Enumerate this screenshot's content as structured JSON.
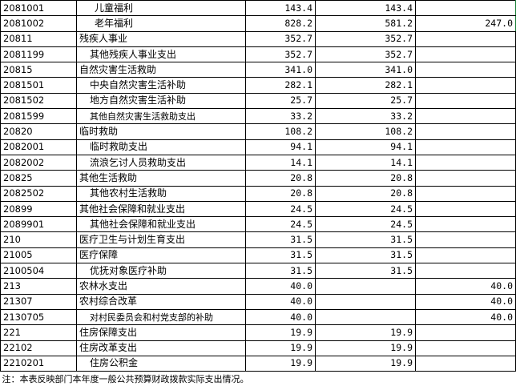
{
  "rows": [
    {
      "code": "2081001",
      "name": "儿童福利",
      "indent": 2,
      "v1": "143.4",
      "v2": "143.4",
      "v3": ""
    },
    {
      "code": "2081002",
      "name": "老年福利",
      "indent": 2,
      "v1": "828.2",
      "v2": "581.2",
      "v3": "247.0"
    },
    {
      "code": "20811",
      "name": "残疾人事业",
      "indent": 0,
      "v1": "352.7",
      "v2": "352.7",
      "v3": ""
    },
    {
      "code": "2081199",
      "name": "其他残疾人事业支出",
      "indent": 1,
      "v1": "352.7",
      "v2": "352.7",
      "v3": ""
    },
    {
      "code": "20815",
      "name": "自然灾害生活救助",
      "indent": 0,
      "v1": "341.0",
      "v2": "341.0",
      "v3": ""
    },
    {
      "code": "2081501",
      "name": "中央自然灾害生活补助",
      "indent": 1,
      "v1": "282.1",
      "v2": "282.1",
      "v3": ""
    },
    {
      "code": "2081502",
      "name": "地方自然灾害生活补助",
      "indent": 1,
      "v1": "25.7",
      "v2": "25.7",
      "v3": ""
    },
    {
      "code": "2081599",
      "name": "其他自然灾害生活救助支出",
      "indent": 1,
      "v1": "33.2",
      "v2": "33.2",
      "v3": ""
    },
    {
      "code": "20820",
      "name": "临时救助",
      "indent": 0,
      "v1": "108.2",
      "v2": "108.2",
      "v3": ""
    },
    {
      "code": "2082001",
      "name": "临时救助支出",
      "indent": 1,
      "v1": "94.1",
      "v2": "94.1",
      "v3": ""
    },
    {
      "code": "2082002",
      "name": "流浪乞讨人员救助支出",
      "indent": 1,
      "v1": "14.1",
      "v2": "14.1",
      "v3": ""
    },
    {
      "code": "20825",
      "name": "其他生活救助",
      "indent": 0,
      "v1": "20.8",
      "v2": "20.8",
      "v3": ""
    },
    {
      "code": "2082502",
      "name": "其他农村生活救助",
      "indent": 1,
      "v1": "20.8",
      "v2": "20.8",
      "v3": ""
    },
    {
      "code": "20899",
      "name": "其他社会保障和就业支出",
      "indent": 0,
      "v1": "24.5",
      "v2": "24.5",
      "v3": ""
    },
    {
      "code": "2089901",
      "name": "其他社会保障和就业支出",
      "indent": 1,
      "v1": "24.5",
      "v2": "24.5",
      "v3": ""
    },
    {
      "code": "210",
      "name": "医疗卫生与计划生育支出",
      "indent": 0,
      "v1": "31.5",
      "v2": "31.5",
      "v3": ""
    },
    {
      "code": "21005",
      "name": "医疗保障",
      "indent": 0,
      "v1": "31.5",
      "v2": "31.5",
      "v3": ""
    },
    {
      "code": "2100504",
      "name": "优抚对象医疗补助",
      "indent": 1,
      "v1": "31.5",
      "v2": "31.5",
      "v3": ""
    },
    {
      "code": "213",
      "name": "农林水支出",
      "indent": 0,
      "v1": "40.0",
      "v2": "",
      "v3": "40.0"
    },
    {
      "code": "21307",
      "name": "农村综合改革",
      "indent": 0,
      "v1": "40.0",
      "v2": "",
      "v3": "40.0"
    },
    {
      "code": "2130705",
      "name": "对村民委员会和村党支部的补助",
      "indent": 1,
      "v1": "40.0",
      "v2": "",
      "v3": "40.0"
    },
    {
      "code": "221",
      "name": "住房保障支出",
      "indent": 0,
      "v1": "19.9",
      "v2": "19.9",
      "v3": ""
    },
    {
      "code": "22102",
      "name": "住房改革支出",
      "indent": 0,
      "v1": "19.9",
      "v2": "19.9",
      "v3": ""
    },
    {
      "code": "2210201",
      "name": "住房公积金",
      "indent": 1,
      "v1": "19.9",
      "v2": "19.9",
      "v3": ""
    }
  ],
  "note": "注：本表反映部门本年度一般公共预算财政拨款实际支出情况。"
}
